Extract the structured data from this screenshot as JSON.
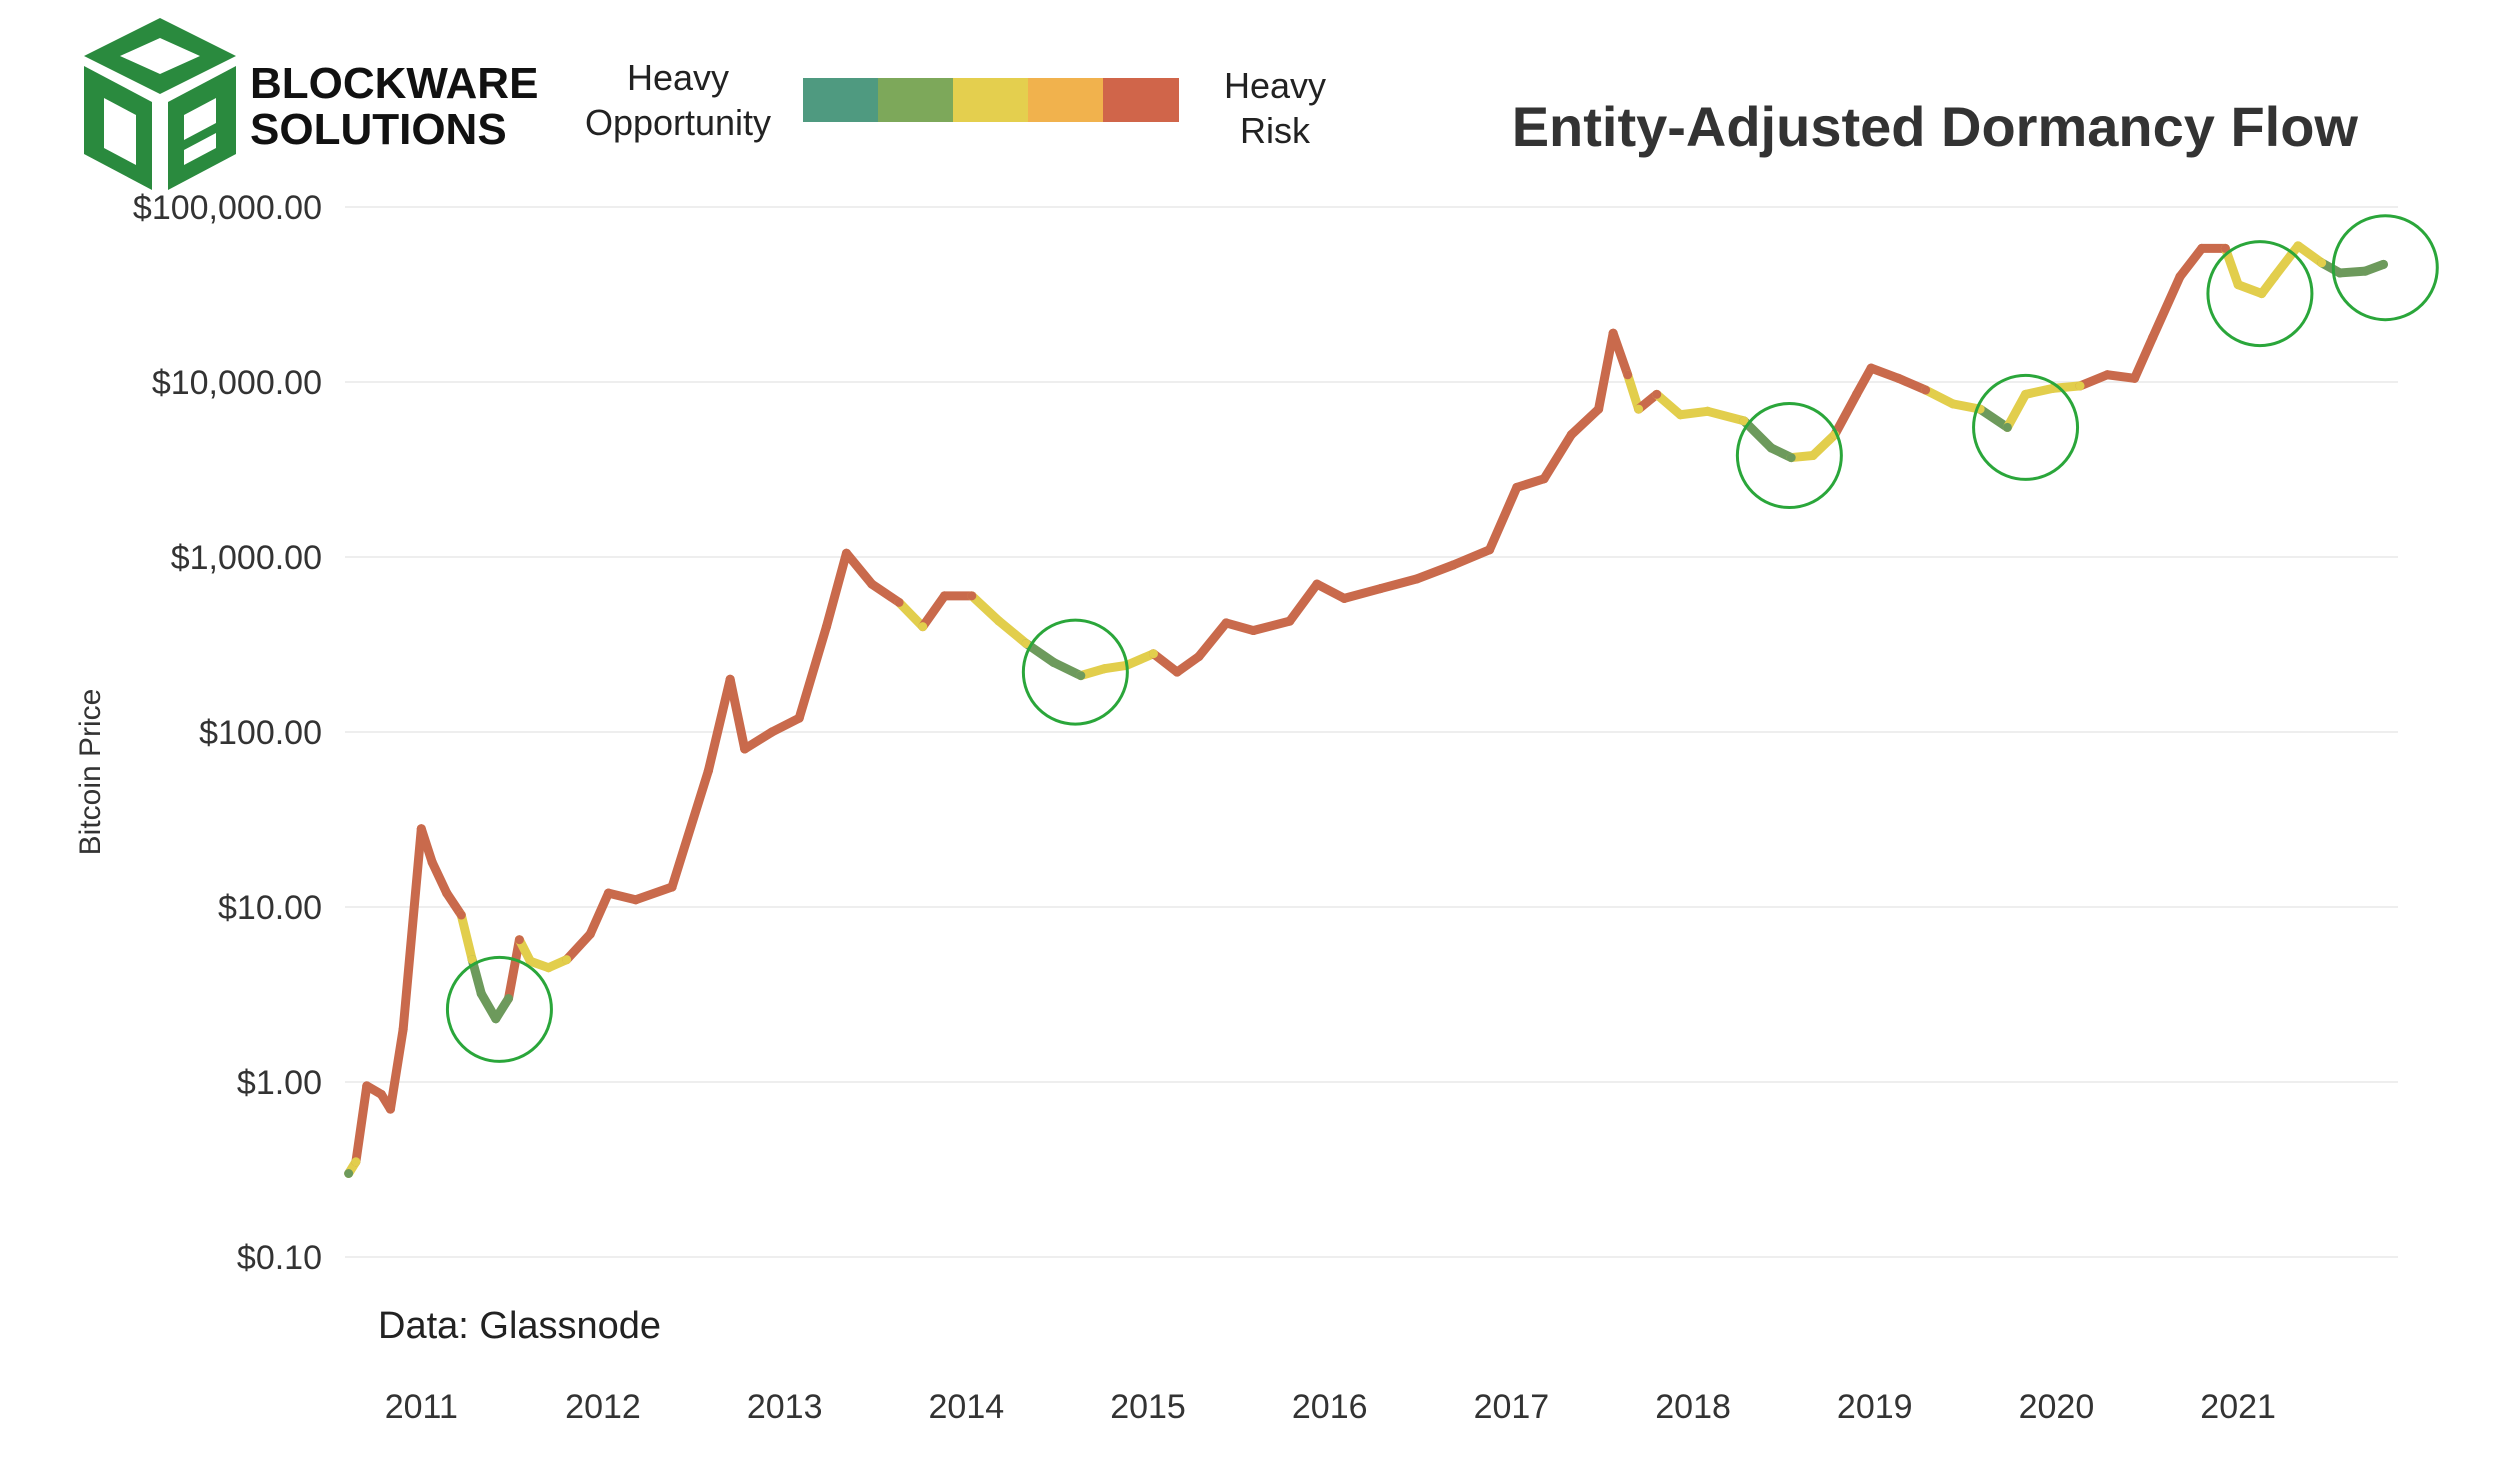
{
  "logo": {
    "line1": "BLOCKWARE",
    "line2": "SOLUTIONS",
    "green": "#2a8a3e"
  },
  "legend": {
    "left_label_1": "Heavy",
    "left_label_2": "Opportunity",
    "right_label_1": "Heavy",
    "right_label_2": "Risk",
    "colors": [
      "#4f9a80",
      "#7da85a",
      "#e4cf4e",
      "#f1b24d",
      "#d0654a"
    ]
  },
  "source": "Data: Glassnode",
  "chart_data": {
    "type": "line",
    "title": "Entity-Adjusted Dormancy Flow",
    "ylabel": "Bitcoin Price",
    "xlabel": "",
    "yscale": "log",
    "ylim": [
      0.1,
      100000
    ],
    "yticks": [
      {
        "value": 0.1,
        "label": "$0.10"
      },
      {
        "value": 1,
        "label": "$1.00"
      },
      {
        "value": 10,
        "label": "$10.00"
      },
      {
        "value": 100,
        "label": "$100.00"
      },
      {
        "value": 1000,
        "label": "$1,000.00"
      },
      {
        "value": 10000,
        "label": "$10,000.00"
      },
      {
        "value": 100000,
        "label": "$100,000.00"
      }
    ],
    "xlim": [
      2010.6,
      2021.9
    ],
    "xticks": [
      {
        "value": 2011,
        "label": "2011"
      },
      {
        "value": 2012,
        "label": "2012"
      },
      {
        "value": 2013,
        "label": "2013"
      },
      {
        "value": 2014,
        "label": "2014"
      },
      {
        "value": 2015,
        "label": "2015"
      },
      {
        "value": 2016,
        "label": "2016"
      },
      {
        "value": 2017,
        "label": "2017"
      },
      {
        "value": 2018,
        "label": "2018"
      },
      {
        "value": 2019,
        "label": "2019"
      },
      {
        "value": 2020,
        "label": "2020"
      },
      {
        "value": 2021,
        "label": "2021"
      }
    ],
    "series": [
      {
        "points": [
          [
            2010.62,
            0.3,
            "opportunity"
          ],
          [
            2010.66,
            0.35,
            "neutral"
          ],
          [
            2010.72,
            0.95,
            "risk"
          ],
          [
            2010.8,
            0.85,
            "risk"
          ],
          [
            2010.85,
            0.7,
            "risk"
          ],
          [
            2010.92,
            2.0,
            "risk"
          ],
          [
            2011.02,
            28,
            "risk"
          ],
          [
            2011.08,
            18,
            "risk"
          ],
          [
            2011.16,
            12,
            "risk"
          ],
          [
            2011.24,
            9,
            "risk"
          ],
          [
            2011.3,
            5,
            "neutral"
          ],
          [
            2011.35,
            3.2,
            "opportunity"
          ],
          [
            2011.43,
            2.3,
            "opportunity"
          ],
          [
            2011.5,
            3.0,
            "opportunity"
          ],
          [
            2011.56,
            6.5,
            "risk"
          ],
          [
            2011.62,
            4.9,
            "neutral"
          ],
          [
            2011.72,
            4.5,
            "neutral"
          ],
          [
            2011.82,
            5.0,
            "neutral"
          ],
          [
            2011.95,
            7.0,
            "risk"
          ],
          [
            2012.05,
            12,
            "risk"
          ],
          [
            2012.2,
            11,
            "risk"
          ],
          [
            2012.4,
            13,
            "risk"
          ],
          [
            2012.6,
            60,
            "risk"
          ],
          [
            2012.72,
            200,
            "risk"
          ],
          [
            2012.8,
            80,
            "risk"
          ],
          [
            2012.95,
            100,
            "risk"
          ],
          [
            2013.1,
            120,
            "risk"
          ],
          [
            2013.25,
            400,
            "risk"
          ],
          [
            2013.36,
            1050,
            "risk"
          ],
          [
            2013.5,
            700,
            "risk"
          ],
          [
            2013.65,
            550,
            "risk"
          ],
          [
            2013.78,
            400,
            "neutral"
          ],
          [
            2013.9,
            600,
            "risk"
          ],
          [
            2014.05,
            600,
            "risk"
          ],
          [
            2014.2,
            430,
            "neutral"
          ],
          [
            2014.35,
            320,
            "neutral"
          ],
          [
            2014.5,
            250,
            "opportunity"
          ],
          [
            2014.65,
            210,
            "opportunity"
          ],
          [
            2014.78,
            230,
            "neutral"
          ],
          [
            2014.9,
            240,
            "neutral"
          ],
          [
            2015.05,
            280,
            "neutral"
          ],
          [
            2015.18,
            220,
            "risk"
          ],
          [
            2015.3,
            270,
            "risk"
          ],
          [
            2015.45,
            420,
            "risk"
          ],
          [
            2015.6,
            380,
            "risk"
          ],
          [
            2015.8,
            430,
            "risk"
          ],
          [
            2015.95,
            700,
            "risk"
          ],
          [
            2016.1,
            580,
            "risk"
          ],
          [
            2016.3,
            660,
            "risk"
          ],
          [
            2016.5,
            750,
            "risk"
          ],
          [
            2016.7,
            900,
            "risk"
          ],
          [
            2016.9,
            1100,
            "risk"
          ],
          [
            2017.05,
            2500,
            "risk"
          ],
          [
            2017.2,
            2800,
            "risk"
          ],
          [
            2017.35,
            5000,
            "risk"
          ],
          [
            2017.5,
            7000,
            "risk"
          ],
          [
            2017.58,
            19000,
            "risk"
          ],
          [
            2017.66,
            11000,
            "risk"
          ],
          [
            2017.72,
            7000,
            "neutral"
          ],
          [
            2017.82,
            8500,
            "risk"
          ],
          [
            2017.95,
            6500,
            "neutral"
          ],
          [
            2018.1,
            6800,
            "neutral"
          ],
          [
            2018.3,
            6000,
            "neutral"
          ],
          [
            2018.45,
            4200,
            "opportunity"
          ],
          [
            2018.56,
            3700,
            "opportunity"
          ],
          [
            2018.68,
            3800,
            "neutral"
          ],
          [
            2018.8,
            5000,
            "neutral"
          ],
          [
            2018.92,
            8500,
            "risk"
          ],
          [
            2019.0,
            12000,
            "risk"
          ],
          [
            2019.15,
            10500,
            "risk"
          ],
          [
            2019.3,
            9000,
            "risk"
          ],
          [
            2019.45,
            7500,
            "neutral"
          ],
          [
            2019.6,
            7000,
            "neutral"
          ],
          [
            2019.75,
            5500,
            "opportunity"
          ],
          [
            2019.85,
            8500,
            "neutral"
          ],
          [
            2020.0,
            9200,
            "neutral"
          ],
          [
            2020.15,
            9500,
            "neutral"
          ],
          [
            2020.3,
            11000,
            "risk"
          ],
          [
            2020.45,
            10500,
            "risk"
          ],
          [
            2020.55,
            18000,
            "risk"
          ],
          [
            2020.7,
            40000,
            "risk"
          ],
          [
            2020.82,
            58000,
            "risk"
          ],
          [
            2020.95,
            58000,
            "risk"
          ],
          [
            2021.02,
            36000,
            "neutral"
          ],
          [
            2021.15,
            32000,
            "neutral"
          ],
          [
            2021.22,
            40000,
            "neutral"
          ],
          [
            2021.35,
            60000,
            "neutral"
          ],
          [
            2021.48,
            48000,
            "neutral"
          ],
          [
            2021.58,
            42000,
            "opportunity"
          ],
          [
            2021.72,
            43000,
            "opportunity"
          ],
          [
            2021.82,
            47000,
            "opportunity"
          ]
        ]
      }
    ],
    "category_colors": {
      "opportunity": "#6d9a5c",
      "neutral": "#e2ce4c",
      "risk": "#c96a4c"
    },
    "annotations": [
      {
        "type": "circle",
        "x": 2011.45,
        "y": 2.6,
        "color": "#2aa63a"
      },
      {
        "type": "circle",
        "x": 2014.62,
        "y": 220,
        "color": "#2aa63a"
      },
      {
        "type": "circle",
        "x": 2018.55,
        "y": 3800,
        "color": "#2aa63a"
      },
      {
        "type": "circle",
        "x": 2019.85,
        "y": 5500,
        "color": "#2aa63a"
      },
      {
        "type": "circle",
        "x": 2021.14,
        "y": 32000,
        "color": "#2aa63a"
      },
      {
        "type": "circle",
        "x": 2021.83,
        "y": 45000,
        "color": "#2aa63a"
      }
    ]
  }
}
